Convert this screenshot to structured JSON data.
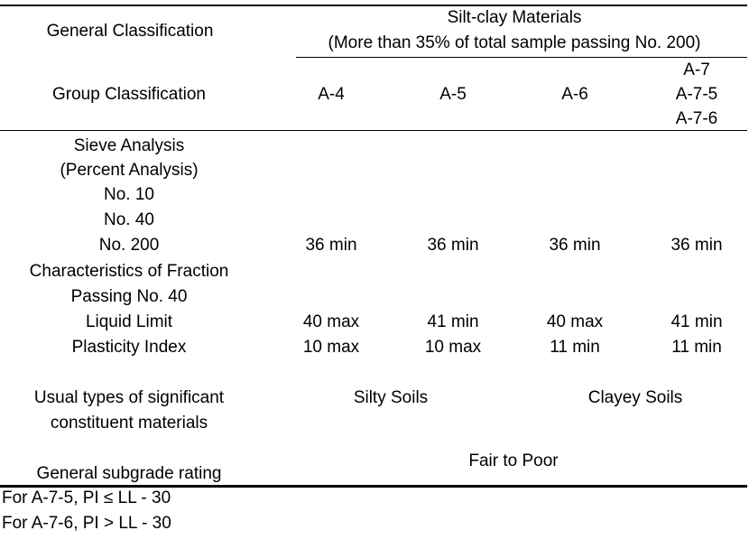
{
  "table": {
    "header": {
      "general_classification_label": "General Classification",
      "material_group_line1": "Silt-clay Materials",
      "material_group_line2": "(More than 35% of total sample passing No. 200)",
      "group_classification_label": "Group Classification",
      "groups": [
        "A-4",
        "A-5",
        "A-6"
      ],
      "group_a7": [
        "A-7",
        "A-7-5",
        "A-7-6"
      ]
    },
    "body": {
      "sieve_analysis_label": "Sieve Analysis",
      "percent_analysis_label": "(Percent Analysis)",
      "no10_label": "No. 10",
      "no40_label": "No. 40",
      "no200_label": "No. 200",
      "no200_values": [
        "36 min",
        "36 min",
        "36 min",
        "36 min"
      ],
      "fraction_label_line1": "Characteristics of Fraction",
      "fraction_label_line2": "Passing No. 40",
      "liquid_limit_label": "Liquid Limit",
      "liquid_limit_values": [
        "40 max",
        "41 min",
        "40 max",
        "41 min"
      ],
      "plasticity_index_label": "Plasticity Index",
      "plasticity_index_values": [
        "10 max",
        "10 max",
        "11 min",
        "11 min"
      ],
      "usual_types_line1": "Usual types of significant",
      "usual_types_line2": "constituent materials",
      "silty_soils": "Silty Soils",
      "clayey_soils": "Clayey Soils",
      "subgrade_label": "General subgrade rating",
      "subgrade_value": "Fair to Poor"
    },
    "footnotes": [
      "For A-7-5, PI ≤ LL - 30",
      "For A-7-6, PI > LL - 30"
    ]
  }
}
